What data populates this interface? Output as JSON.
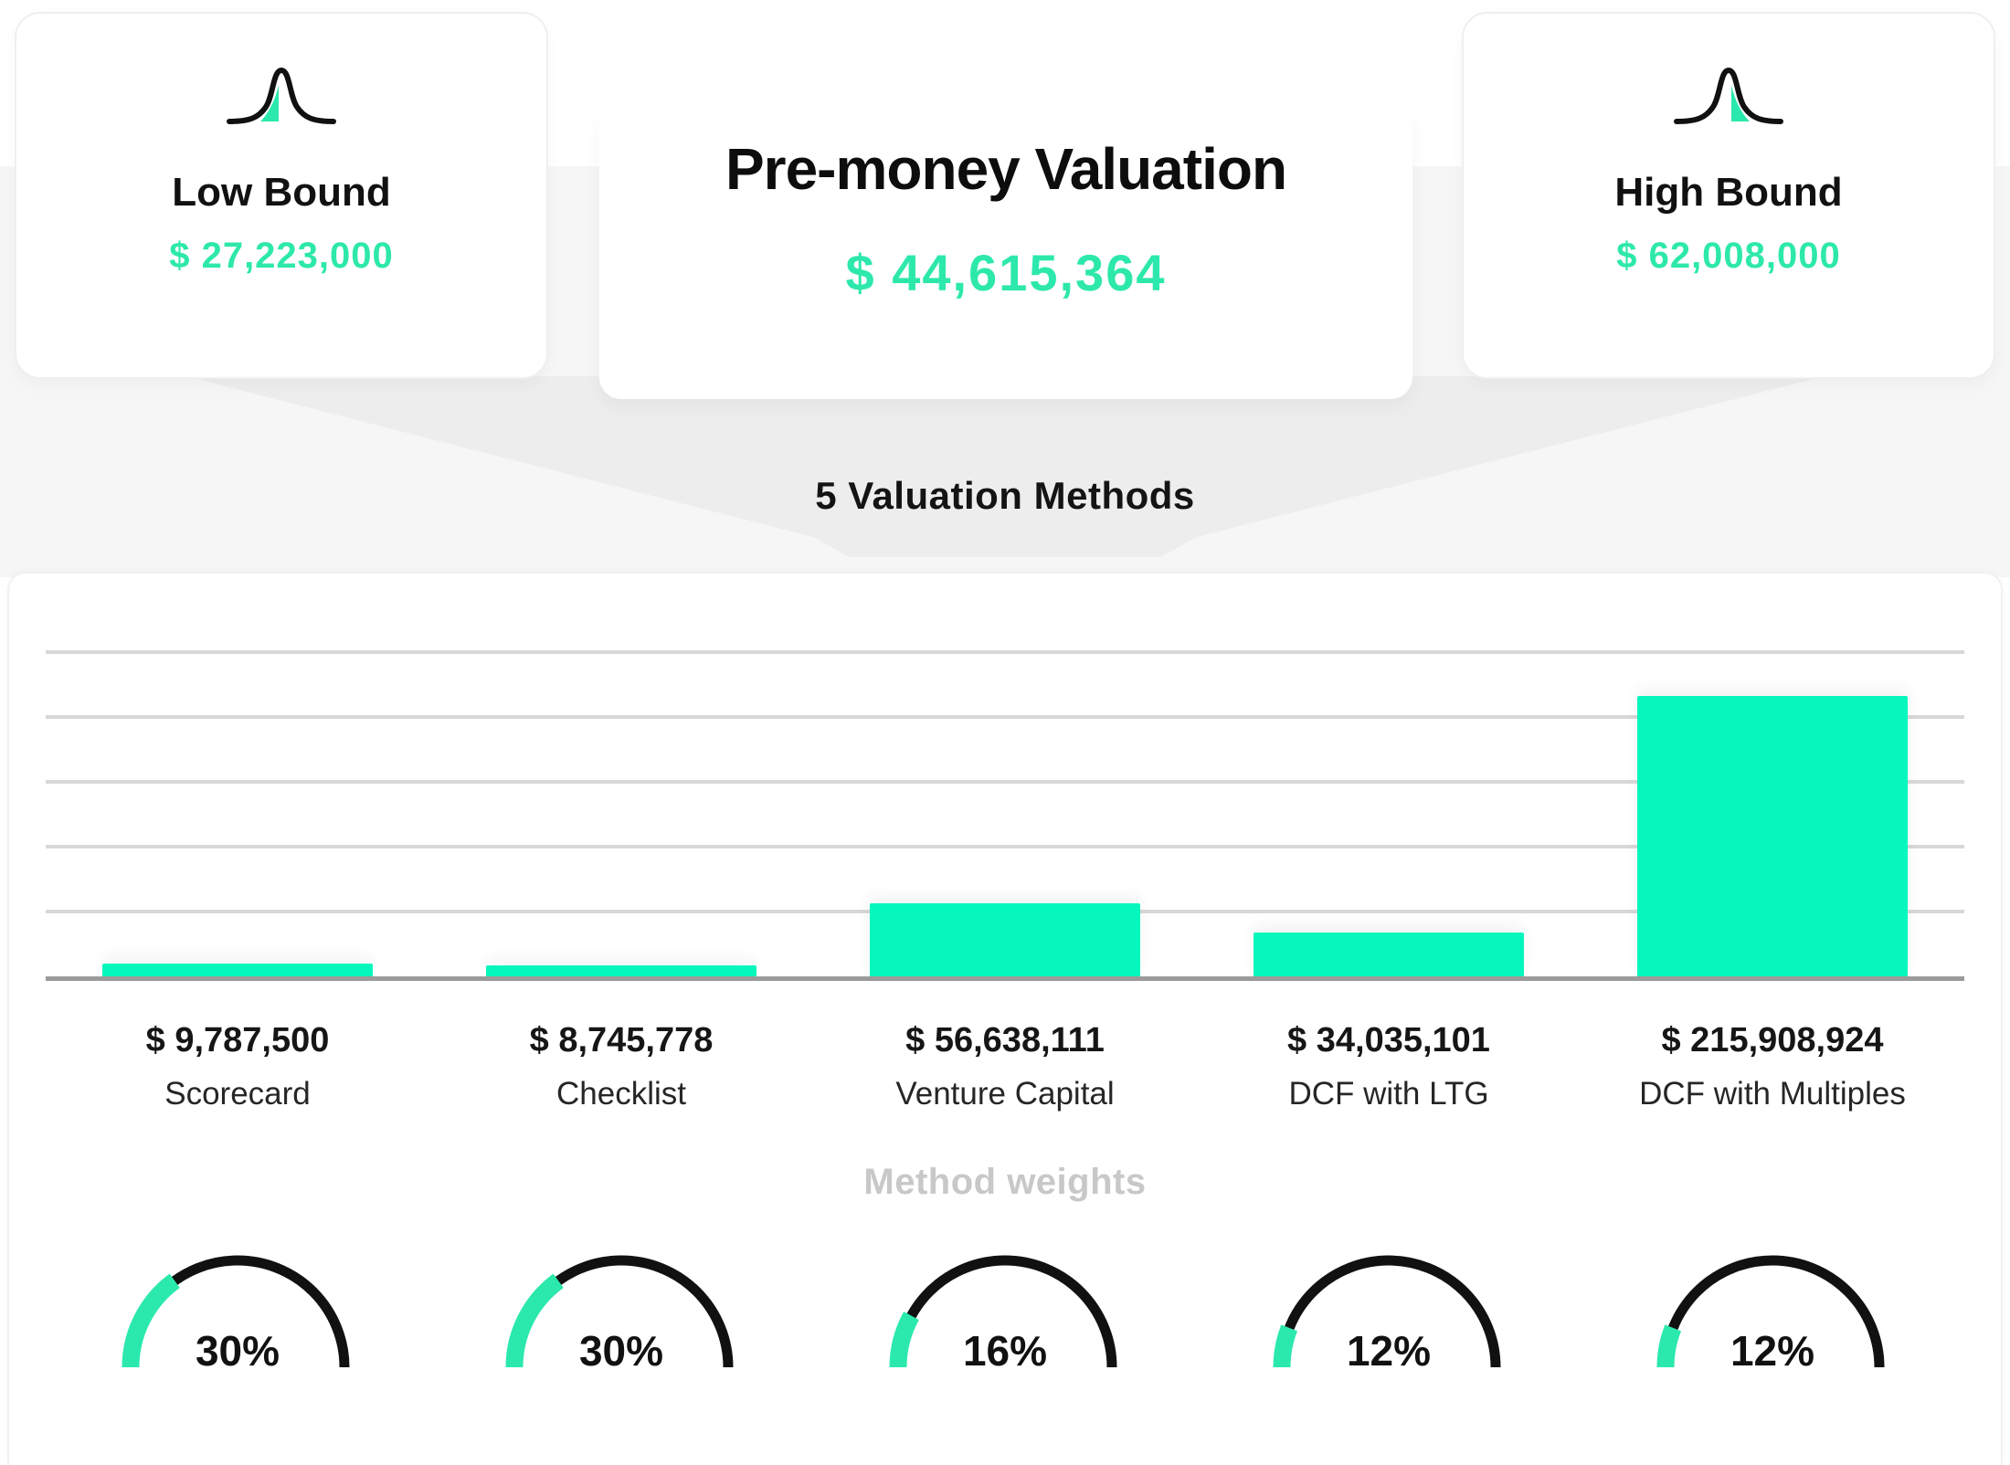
{
  "colors": {
    "accent_text": "#2de8ab",
    "bar_fill": "#06f7bd",
    "gauge_arc_black": "#111111",
    "gauge_arc_teal": "#2be9ad",
    "gridline": "#d8d8d8",
    "axis": "#9b9b9b",
    "muted_title": "#c8c8c8"
  },
  "summary_cards": {
    "low": {
      "icon": "bell-curve-left-tail-icon",
      "label": "Low Bound",
      "value": "$ 27,223,000"
    },
    "center": {
      "title": "Pre-money Valuation",
      "value": "$ 44,615,364"
    },
    "high": {
      "icon": "bell-curve-right-tail-icon",
      "label": "High Bound",
      "value": "$ 62,008,000"
    }
  },
  "funnel": {
    "label": "5 Valuation Methods"
  },
  "chart_data": {
    "type": "bar",
    "title": "5 Valuation Methods",
    "categories": [
      "Scorecard",
      "Checklist",
      "Venture Capital",
      "DCF with LTG",
      "DCF with Multiples"
    ],
    "values": [
      9787500,
      8745778,
      56638111,
      34035101,
      215908924
    ],
    "value_labels": [
      "$ 9,787,500",
      "$ 8,745,778",
      "$ 56,638,111",
      "$ 34,035,101",
      "$ 215,908,924"
    ],
    "xlabel": "",
    "ylabel": "",
    "ylim": [
      0,
      250000000
    ],
    "gridline_step": 50000000,
    "grid": true,
    "legend": false,
    "bar_color": "#06f7bd"
  },
  "weights": {
    "title": "Method weights",
    "gauges": [
      {
        "method": "Scorecard",
        "percent": 30,
        "label": "30%"
      },
      {
        "method": "Checklist",
        "percent": 30,
        "label": "30%"
      },
      {
        "method": "Venture Capital",
        "percent": 16,
        "label": "16%"
      },
      {
        "method": "DCF with LTG",
        "percent": 12,
        "label": "12%"
      },
      {
        "method": "DCF with Multiples",
        "percent": 12,
        "label": "12%"
      }
    ]
  }
}
